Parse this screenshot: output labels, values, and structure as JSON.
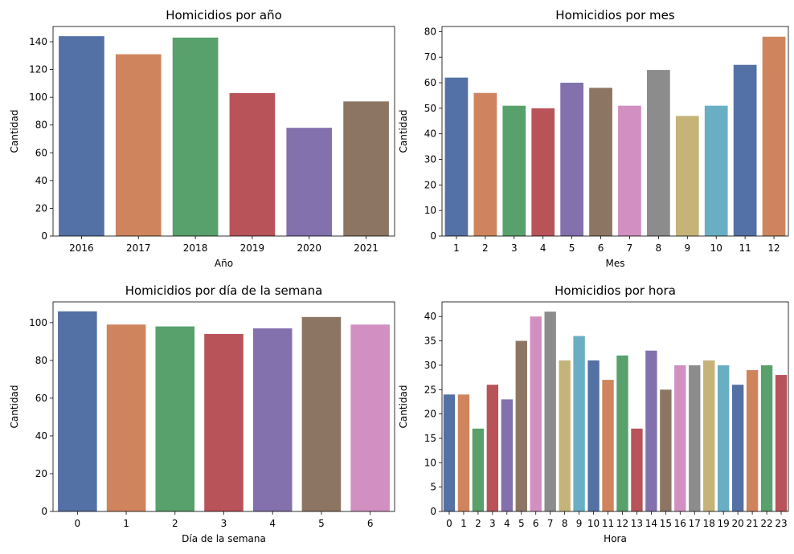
{
  "palette": [
    "#5471a5",
    "#d0845e",
    "#58a06c",
    "#b8535a",
    "#8271ad",
    "#8c7663",
    "#d28fc1",
    "#8c8c8c",
    "#c5b378",
    "#6aaec4"
  ],
  "chart_data": [
    {
      "type": "bar",
      "title": "Homicidios por año",
      "xlabel": "Año",
      "ylabel": "Cantidad",
      "categories": [
        "2016",
        "2017",
        "2018",
        "2019",
        "2020",
        "2021"
      ],
      "values": [
        144,
        131,
        143,
        103,
        78,
        97
      ],
      "ylim": [
        0,
        151
      ],
      "yticks": [
        0,
        20,
        40,
        60,
        80,
        100,
        120,
        140
      ],
      "grid": false
    },
    {
      "type": "bar",
      "title": "Homicidios por mes",
      "xlabel": "Mes",
      "ylabel": "Cantidad",
      "categories": [
        "1",
        "2",
        "3",
        "4",
        "5",
        "6",
        "7",
        "8",
        "9",
        "10",
        "11",
        "12"
      ],
      "values": [
        62,
        56,
        51,
        50,
        60,
        58,
        51,
        65,
        47,
        51,
        67,
        78
      ],
      "ylim": [
        0,
        82
      ],
      "yticks": [
        0,
        10,
        20,
        30,
        40,
        50,
        60,
        70,
        80
      ],
      "grid": false
    },
    {
      "type": "bar",
      "title": "Homicidios por día de la semana",
      "xlabel": "Día de la semana",
      "ylabel": "Cantidad",
      "categories": [
        "0",
        "1",
        "2",
        "3",
        "4",
        "5",
        "6"
      ],
      "values": [
        106,
        99,
        98,
        94,
        97,
        103,
        99
      ],
      "ylim": [
        0,
        111
      ],
      "yticks": [
        0,
        20,
        40,
        60,
        80,
        100
      ],
      "grid": false
    },
    {
      "type": "bar",
      "title": "Homicidios por hora",
      "xlabel": "Hora",
      "ylabel": "Cantidad",
      "categories": [
        "0",
        "1",
        "2",
        "3",
        "4",
        "5",
        "6",
        "7",
        "8",
        "9",
        "10",
        "11",
        "12",
        "13",
        "14",
        "15",
        "16",
        "17",
        "18",
        "19",
        "20",
        "21",
        "22",
        "23"
      ],
      "values": [
        24,
        24,
        17,
        26,
        23,
        35,
        40,
        41,
        31,
        36,
        31,
        27,
        32,
        17,
        33,
        25,
        30,
        30,
        31,
        30,
        26,
        29,
        30,
        28
      ],
      "ylim": [
        0,
        43
      ],
      "yticks": [
        0,
        5,
        10,
        15,
        20,
        25,
        30,
        35,
        40
      ],
      "grid": false
    }
  ]
}
